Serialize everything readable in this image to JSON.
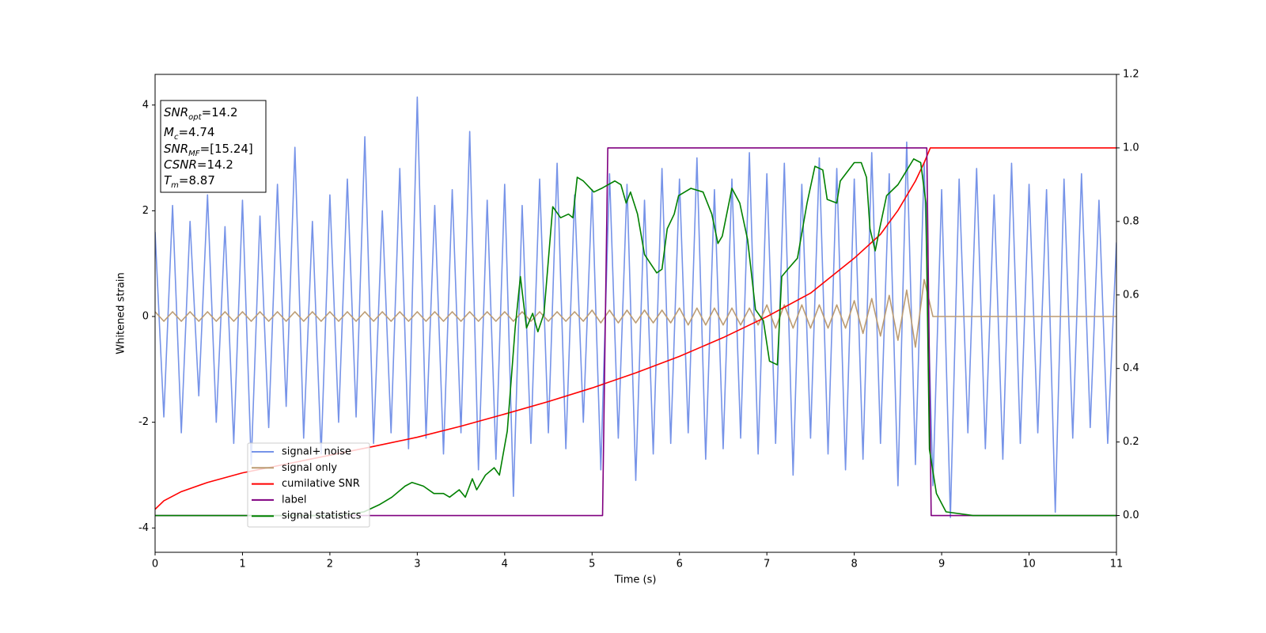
{
  "chart_data": {
    "type": "line",
    "xlabel": "Time (s)",
    "ylabel": "Whitened strain",
    "annotations": [
      {
        "main": "SNR",
        "sub": "opt",
        "text": "=14.2"
      },
      {
        "main": "M",
        "sub": "c",
        "text": "=4.74"
      },
      {
        "main": "SNR",
        "sub": "MF",
        "text": "=[15.24]"
      },
      {
        "main": "CSNR",
        "text": "=14.2"
      },
      {
        "main": "T",
        "sub": "m",
        "text": "=8.87"
      }
    ],
    "xlim": [
      0,
      11
    ],
    "xticks": [
      0,
      1,
      2,
      3,
      4,
      5,
      6,
      7,
      8,
      9,
      10,
      11
    ],
    "ylim": [
      -4.46,
      4.58
    ],
    "yticks": [
      -4,
      -2,
      0,
      2,
      4
    ],
    "y2lim": [
      -0.1,
      1.2
    ],
    "y2ticks": [
      {
        "value": 0,
        "label": "0.0"
      },
      {
        "value": 0.2,
        "label": "0.2"
      },
      {
        "value": 0.4,
        "label": "0.4"
      },
      {
        "value": 0.6,
        "label": "0.6"
      },
      {
        "value": 0.8,
        "label": "0.8"
      },
      {
        "value": 1,
        "label": "1.0"
      },
      {
        "value": 1.2,
        "label": "1.2"
      }
    ],
    "x": [
      0,
      0.1,
      0.2,
      0.3,
      0.4,
      0.5,
      0.6,
      0.7,
      0.8,
      0.9,
      1,
      1.1,
      1.2,
      1.3,
      1.4,
      1.5,
      1.6,
      1.7,
      1.8,
      1.9,
      2,
      2.1,
      2.2,
      2.3,
      2.4,
      2.5,
      2.6,
      2.7,
      2.8,
      2.9,
      3,
      3.1,
      3.2,
      3.3,
      3.4,
      3.5,
      3.6,
      3.7,
      3.8,
      3.9,
      4,
      4.1,
      4.2,
      4.3,
      4.4,
      4.5,
      4.6,
      4.7,
      4.8,
      4.9,
      5,
      5.1,
      5.2,
      5.3,
      5.4,
      5.5,
      5.6,
      5.7,
      5.8,
      5.9,
      6,
      6.1,
      6.2,
      6.3,
      6.4,
      6.5,
      6.6,
      6.7,
      6.8,
      6.9,
      7,
      7.1,
      7.2,
      7.3,
      7.4,
      7.5,
      7.6,
      7.7,
      7.8,
      7.9,
      8,
      8.1,
      8.2,
      8.3,
      8.4,
      8.5,
      8.6,
      8.7,
      8.8,
      8.9,
      9,
      9.1,
      9.2,
      9.3,
      9.4,
      9.5,
      9.6,
      9.7,
      9.8,
      9.9,
      10,
      10.1,
      10.2,
      10.3,
      10.4,
      10.5,
      10.6,
      10.7,
      10.8,
      10.9,
      11
    ],
    "legend": "lower left",
    "series": [
      {
        "name": "signal+ noise",
        "color": "#7693e8",
        "values": [
          1.6,
          -1.9,
          2.1,
          -2.2,
          1.8,
          -1.5,
          2.3,
          -2.0,
          1.7,
          -2.4,
          2.2,
          -2.8,
          1.9,
          -2.1,
          2.5,
          -1.7,
          3.2,
          -2.3,
          1.8,
          -2.6,
          2.3,
          -2.0,
          2.6,
          -1.9,
          3.4,
          -2.4,
          2.0,
          -2.2,
          2.8,
          -2.5,
          4.15,
          -2.3,
          2.1,
          -2.6,
          2.4,
          -2.2,
          3.5,
          -2.9,
          2.2,
          -2.7,
          2.5,
          -3.4,
          2.1,
          -2.4,
          2.6,
          -2.2,
          2.9,
          -2.5,
          2.3,
          -2.0,
          2.4,
          -2.9,
          2.7,
          -2.3,
          2.5,
          -3.1,
          2.2,
          -2.6,
          2.8,
          -2.4,
          2.6,
          -2.2,
          3.0,
          -2.7,
          2.4,
          -2.5,
          2.6,
          -2.3,
          3.1,
          -2.6,
          2.7,
          -2.4,
          2.9,
          -3.0,
          2.5,
          -2.3,
          3.0,
          -2.6,
          2.8,
          -2.9,
          2.6,
          -2.7,
          3.1,
          -2.4,
          2.7,
          -3.2,
          3.3,
          -2.8,
          2.9,
          -3.2,
          2.4,
          -3.8,
          2.6,
          -2.2,
          2.8,
          -2.5,
          2.3,
          -2.7,
          2.9,
          -2.4,
          2.5,
          -2.2,
          2.4,
          -3.7,
          2.6,
          -2.3,
          2.7,
          -2.1,
          2.2,
          -2.4,
          1.4
        ]
      },
      {
        "name": "signal only",
        "color": "#bc9c73",
        "values": [
          0.09,
          -0.09,
          0.09,
          -0.09,
          0.09,
          -0.09,
          0.09,
          -0.09,
          0.09,
          -0.09,
          0.09,
          -0.09,
          0.09,
          -0.09,
          0.09,
          -0.09,
          0.09,
          -0.09,
          0.09,
          -0.09,
          0.09,
          -0.09,
          0.09,
          -0.09,
          0.09,
          -0.09,
          0.09,
          -0.09,
          0.09,
          -0.09,
          0.09,
          -0.09,
          0.09,
          -0.09,
          0.09,
          -0.09,
          0.09,
          -0.09,
          0.09,
          -0.09,
          0.09,
          -0.09,
          0.09,
          -0.09,
          0.09,
          -0.09,
          0.09,
          -0.09,
          0.09,
          -0.09,
          0.12,
          -0.12,
          0.12,
          -0.12,
          0.12,
          -0.12,
          0.12,
          -0.12,
          0.12,
          -0.12,
          0.16,
          -0.16,
          0.16,
          -0.16,
          0.16,
          -0.16,
          0.16,
          -0.16,
          0.16,
          -0.16,
          0.22,
          -0.22,
          0.22,
          -0.22,
          0.22,
          -0.22,
          0.22,
          -0.22,
          0.22,
          -0.22,
          0.3,
          -0.32,
          0.34,
          -0.37,
          0.4,
          -0.45,
          0.5,
          -0.58,
          0.7,
          0,
          0,
          0,
          0,
          0,
          0,
          0,
          0,
          0,
          0,
          0,
          0,
          0,
          0,
          0,
          0,
          0,
          0,
          0,
          0,
          0,
          0
        ]
      },
      {
        "name": "cumilative SNR",
        "color": "#ff0000",
        "axis": "y2",
        "x": [
          0,
          0.1,
          0.3,
          0.6,
          1,
          1.5,
          2,
          2.5,
          3,
          3.5,
          4,
          4.5,
          5,
          5.5,
          6,
          6.5,
          7,
          7.5,
          8,
          8.3,
          8.5,
          8.7,
          8.8,
          8.87,
          11
        ],
        "values": [
          0.017,
          0.04,
          0.065,
          0.09,
          0.116,
          0.14,
          0.164,
          0.188,
          0.213,
          0.243,
          0.276,
          0.31,
          0.347,
          0.388,
          0.433,
          0.484,
          0.541,
          0.605,
          0.7,
          0.765,
          0.83,
          0.91,
          0.96,
          1.0,
          1.0
        ]
      },
      {
        "name": "label",
        "color": "#800080",
        "axis": "y2",
        "x": [
          0,
          5.12,
          5.18,
          8.83,
          8.88,
          11
        ],
        "values": [
          0,
          0,
          1,
          1,
          0,
          0
        ]
      },
      {
        "name": "signal statistics",
        "color": "#008000",
        "axis": "y2",
        "x": [
          0,
          2.12,
          2.39,
          2.57,
          2.71,
          2.86,
          2.94,
          3.07,
          3.19,
          3.3,
          3.37,
          3.48,
          3.55,
          3.63,
          3.68,
          3.78,
          3.88,
          3.94,
          4.03,
          4.12,
          4.18,
          4.25,
          4.32,
          4.38,
          4.45,
          4.55,
          4.64,
          4.73,
          4.78,
          4.83,
          4.9,
          5.02,
          5.11,
          5.26,
          5.33,
          5.39,
          5.44,
          5.52,
          5.6,
          5.74,
          5.8,
          5.86,
          5.94,
          5.99,
          6.13,
          6.27,
          6.37,
          6.44,
          6.49,
          6.6,
          6.69,
          6.78,
          6.87,
          6.96,
          7.03,
          7.12,
          7.17,
          7.24,
          7.35,
          7.46,
          7.55,
          7.64,
          7.69,
          7.8,
          7.84,
          8.0,
          8.08,
          8.14,
          8.18,
          8.24,
          8.29,
          8.37,
          8.5,
          8.68,
          8.76,
          8.82,
          8.86,
          8.94,
          9.05,
          9.36,
          11
        ],
        "values": [
          0,
          0,
          0.01,
          0.03,
          0.05,
          0.08,
          0.09,
          0.08,
          0.06,
          0.06,
          0.05,
          0.07,
          0.05,
          0.1,
          0.07,
          0.11,
          0.13,
          0.11,
          0.23,
          0.51,
          0.65,
          0.51,
          0.55,
          0.5,
          0.55,
          0.84,
          0.81,
          0.82,
          0.81,
          0.92,
          0.91,
          0.88,
          0.89,
          0.91,
          0.9,
          0.85,
          0.88,
          0.82,
          0.71,
          0.66,
          0.67,
          0.78,
          0.82,
          0.87,
          0.89,
          0.88,
          0.82,
          0.74,
          0.76,
          0.89,
          0.85,
          0.75,
          0.56,
          0.53,
          0.42,
          0.41,
          0.65,
          0.67,
          0.7,
          0.85,
          0.95,
          0.94,
          0.86,
          0.85,
          0.91,
          0.96,
          0.96,
          0.92,
          0.78,
          0.72,
          0.78,
          0.87,
          0.9,
          0.97,
          0.96,
          0.85,
          0.18,
          0.06,
          0.01,
          0,
          0
        ]
      }
    ]
  }
}
